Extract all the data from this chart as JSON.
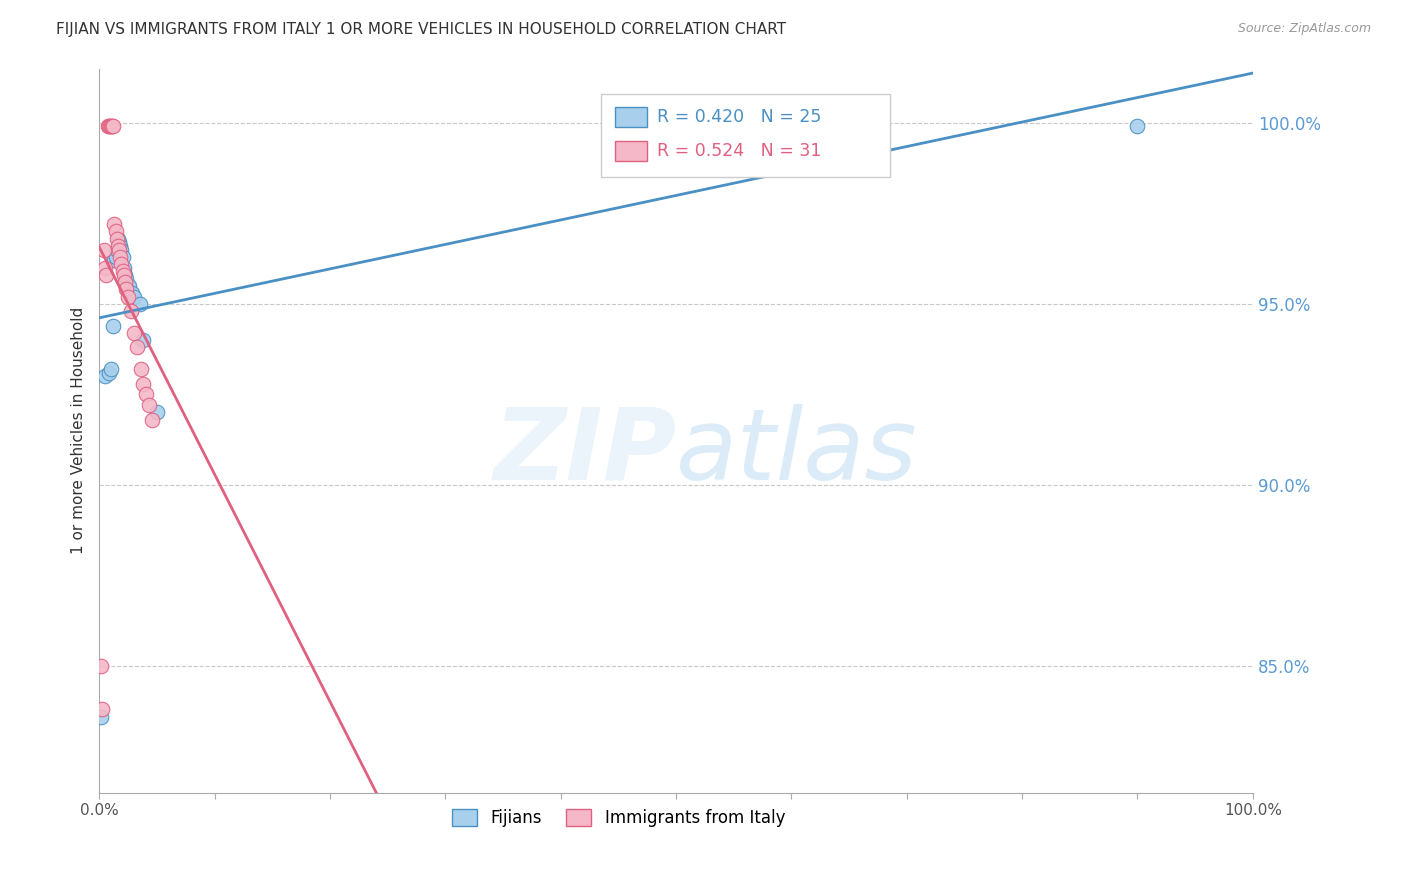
{
  "title": "FIJIAN VS IMMIGRANTS FROM ITALY 1 OR MORE VEHICLES IN HOUSEHOLD CORRELATION CHART",
  "source": "Source: ZipAtlas.com",
  "ylabel": "1 or more Vehicles in Household",
  "ytick_labels": [
    "85.0%",
    "90.0%",
    "95.0%",
    "100.0%"
  ],
  "ytick_values": [
    0.85,
    0.9,
    0.95,
    1.0
  ],
  "xlim": [
    0.0,
    1.0
  ],
  "ylim": [
    0.815,
    1.015
  ],
  "fijians_color": "#a8d0ec",
  "italy_color": "#f4b8c8",
  "fijians_line_color": "#4a90c4",
  "italy_line_color": "#e06080",
  "legend_blue_r": "R = 0.420",
  "legend_blue_n": "N = 25",
  "legend_pink_r": "R = 0.524",
  "legend_pink_n": "N = 31",
  "legend_blue_label": "Fijians",
  "legend_pink_label": "Immigrants from Italy",
  "fijians_x": [
    0.001,
    0.005,
    0.008,
    0.01,
    0.012,
    0.013,
    0.014,
    0.015,
    0.016,
    0.017,
    0.018,
    0.019,
    0.02,
    0.021,
    0.022,
    0.023,
    0.025,
    0.026,
    0.028,
    0.03,
    0.035,
    0.038,
    0.05,
    0.65,
    0.9
  ],
  "fijians_y": [
    0.836,
    0.93,
    0.931,
    0.932,
    0.944,
    0.962,
    0.963,
    0.965,
    0.968,
    0.967,
    0.966,
    0.965,
    0.963,
    0.96,
    0.958,
    0.957,
    0.955,
    0.955,
    0.953,
    0.952,
    0.95,
    0.94,
    0.92,
    0.999,
    0.999
  ],
  "italy_x": [
    0.001,
    0.002,
    0.004,
    0.005,
    0.006,
    0.007,
    0.008,
    0.009,
    0.01,
    0.011,
    0.012,
    0.013,
    0.014,
    0.015,
    0.016,
    0.017,
    0.018,
    0.019,
    0.02,
    0.021,
    0.022,
    0.023,
    0.025,
    0.027,
    0.03,
    0.033,
    0.036,
    0.038,
    0.04,
    0.043,
    0.046
  ],
  "italy_y": [
    0.85,
    0.838,
    0.965,
    0.96,
    0.958,
    0.999,
    0.999,
    0.999,
    0.999,
    0.999,
    0.999,
    0.972,
    0.97,
    0.968,
    0.966,
    0.965,
    0.963,
    0.961,
    0.959,
    0.958,
    0.956,
    0.954,
    0.952,
    0.948,
    0.942,
    0.938,
    0.932,
    0.928,
    0.925,
    0.922,
    0.918
  ],
  "bg_color": "#ffffff",
  "grid_color": "#c8c8c8"
}
